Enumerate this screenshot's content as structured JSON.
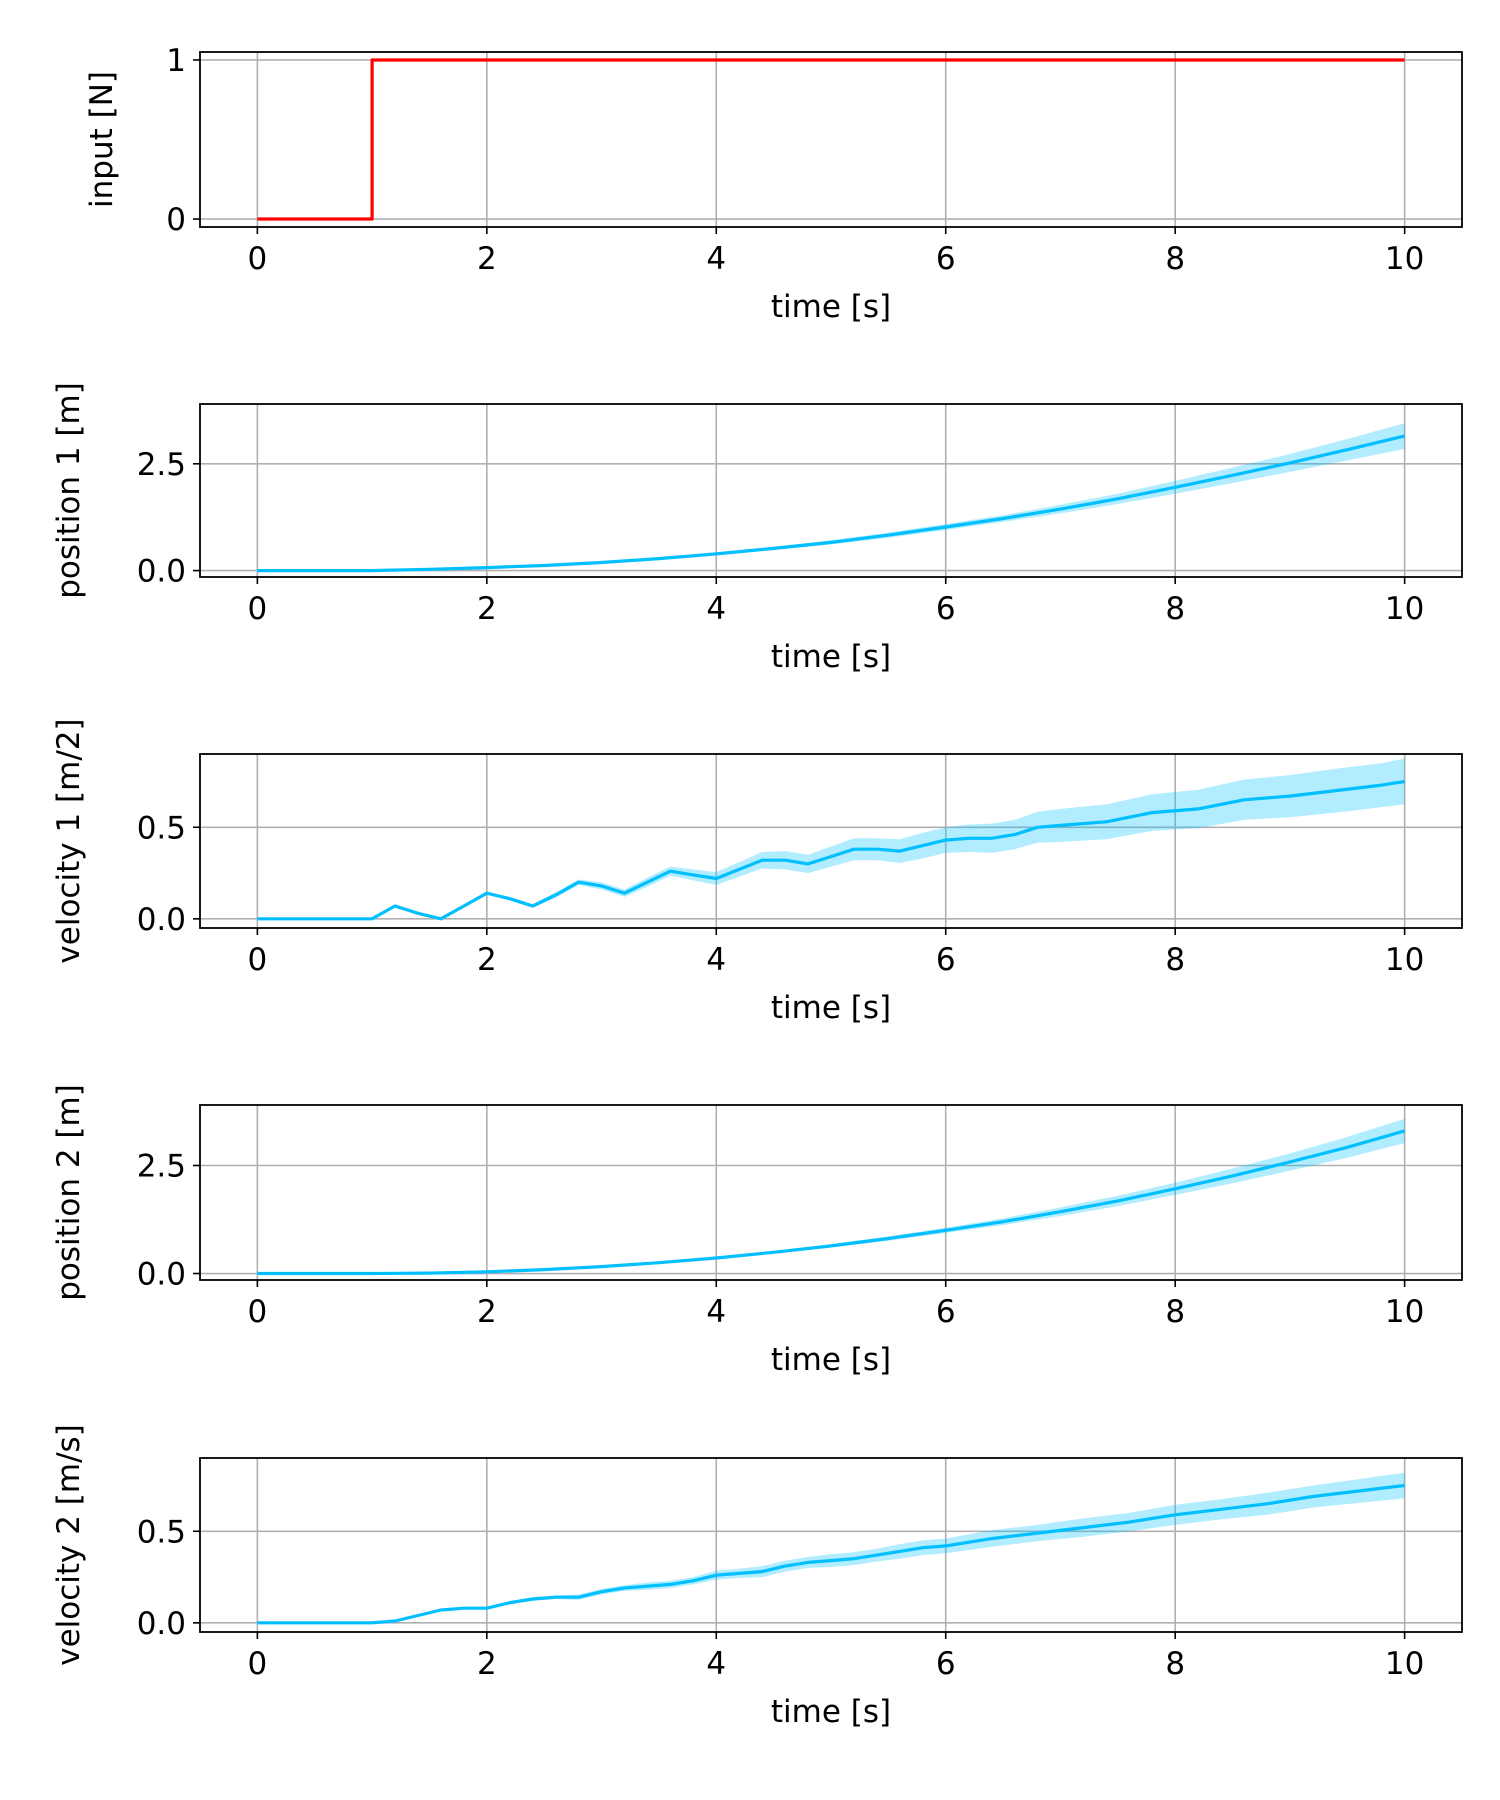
{
  "colors": {
    "input_line": "#ff0000",
    "state_line": "#00bfff",
    "state_band": "#00bfff",
    "grid": "#b0b0b0"
  },
  "chart_data": [
    {
      "type": "line",
      "xlabel": "time [s]",
      "ylabel": "input [N]",
      "xlim": [
        -0.5,
        10.5
      ],
      "ylim": [
        -0.05,
        1.05
      ],
      "xticks": [
        "0",
        "2",
        "4",
        "6",
        "8",
        "10"
      ],
      "yticks": [
        "0",
        "1"
      ],
      "grid": true,
      "series": [
        {
          "color": "#ff0000",
          "x": [
            0,
            1,
            1,
            10
          ],
          "y": [
            0,
            0,
            1,
            1
          ]
        }
      ]
    },
    {
      "type": "line",
      "xlabel": "time [s]",
      "ylabel": "position 1 [m]",
      "xlim": [
        -0.5,
        10.5
      ],
      "ylim": [
        -0.15,
        3.9
      ],
      "xticks": [
        "0",
        "2",
        "4",
        "6",
        "8",
        "10"
      ],
      "yticks": [
        "0.0",
        "2.5"
      ],
      "grid": true,
      "series": [
        {
          "color": "#00bfff",
          "x": [
            0,
            1,
            1.5,
            2,
            2.5,
            3,
            3.5,
            4,
            4.5,
            5,
            5.5,
            6,
            6.5,
            7,
            7.5,
            8,
            8.5,
            9,
            9.5,
            10
          ],
          "y": [
            0,
            0,
            0.03,
            0.07,
            0.12,
            0.19,
            0.28,
            0.39,
            0.52,
            0.66,
            0.83,
            1.02,
            1.22,
            1.44,
            1.68,
            1.95,
            2.23,
            2.52,
            2.83,
            3.15
          ],
          "band": [
            0,
            0,
            0,
            0.01,
            0.01,
            0.02,
            0.02,
            0.03,
            0.04,
            0.05,
            0.06,
            0.07,
            0.08,
            0.1,
            0.12,
            0.15,
            0.18,
            0.21,
            0.25,
            0.3
          ]
        }
      ]
    },
    {
      "type": "line",
      "xlabel": "time [s]",
      "ylabel": "velocity 1 [m/2]",
      "xlim": [
        -0.5,
        10.5
      ],
      "ylim": [
        -0.05,
        0.9
      ],
      "xticks": [
        "0",
        "2",
        "4",
        "6",
        "8",
        "10"
      ],
      "yticks": [
        "0.0",
        "0.5"
      ],
      "grid": true,
      "series": [
        {
          "color": "#00bfff",
          "x": [
            0,
            1,
            1.2,
            1.4,
            1.6,
            1.8,
            2,
            2.2,
            2.4,
            2.6,
            2.8,
            3,
            3.2,
            3.4,
            3.6,
            3.8,
            4,
            4.2,
            4.4,
            4.6,
            4.8,
            5,
            5.2,
            5.4,
            5.6,
            5.8,
            6,
            6.2,
            6.4,
            6.6,
            6.8,
            7,
            7.4,
            7.8,
            8.2,
            8.6,
            9,
            9.4,
            9.8,
            10
          ],
          "y": [
            0,
            0,
            0.07,
            0.03,
            0.0,
            0.07,
            0.14,
            0.11,
            0.07,
            0.13,
            0.2,
            0.18,
            0.14,
            0.2,
            0.26,
            0.24,
            0.22,
            0.27,
            0.32,
            0.32,
            0.3,
            0.34,
            0.38,
            0.38,
            0.37,
            0.4,
            0.43,
            0.44,
            0.44,
            0.46,
            0.5,
            0.51,
            0.53,
            0.58,
            0.6,
            0.65,
            0.67,
            0.7,
            0.73,
            0.75
          ],
          "band": [
            0,
            0,
            0,
            0,
            0,
            0,
            0.005,
            0.01,
            0.01,
            0.015,
            0.015,
            0.02,
            0.02,
            0.025,
            0.025,
            0.03,
            0.035,
            0.04,
            0.045,
            0.05,
            0.05,
            0.055,
            0.06,
            0.06,
            0.065,
            0.07,
            0.07,
            0.075,
            0.08,
            0.08,
            0.085,
            0.09,
            0.095,
            0.1,
            0.105,
            0.11,
            0.115,
            0.12,
            0.12,
            0.125
          ]
        }
      ]
    },
    {
      "type": "line",
      "xlabel": "time [s]",
      "ylabel": "position 2 [m]",
      "xlim": [
        -0.5,
        10.5
      ],
      "ylim": [
        -0.15,
        3.9
      ],
      "xticks": [
        "0",
        "2",
        "4",
        "6",
        "8",
        "10"
      ],
      "yticks": [
        "0.0",
        "2.5"
      ],
      "grid": true,
      "series": [
        {
          "color": "#00bfff",
          "x": [
            0,
            1,
            1.5,
            2,
            2.5,
            3,
            3.5,
            4,
            4.5,
            5,
            5.5,
            6,
            6.5,
            7,
            7.5,
            8,
            8.5,
            9,
            9.5,
            10
          ],
          "y": [
            0,
            0,
            0.01,
            0.04,
            0.09,
            0.16,
            0.25,
            0.36,
            0.49,
            0.64,
            0.81,
            1.0,
            1.2,
            1.43,
            1.68,
            1.96,
            2.26,
            2.58,
            2.92,
            3.3
          ],
          "band": [
            0,
            0,
            0,
            0.005,
            0.01,
            0.015,
            0.02,
            0.025,
            0.03,
            0.04,
            0.05,
            0.06,
            0.08,
            0.1,
            0.12,
            0.14,
            0.17,
            0.2,
            0.24,
            0.28
          ]
        }
      ]
    },
    {
      "type": "line",
      "xlabel": "time [s]",
      "ylabel": "velocity 2 [m/s]",
      "xlim": [
        -0.5,
        10.5
      ],
      "ylim": [
        -0.05,
        0.9
      ],
      "xticks": [
        "0",
        "2",
        "4",
        "6",
        "8",
        "10"
      ],
      "yticks": [
        "0.0",
        "0.5"
      ],
      "grid": true,
      "series": [
        {
          "color": "#00bfff",
          "x": [
            0,
            1,
            1.2,
            1.4,
            1.6,
            1.8,
            2,
            2.2,
            2.4,
            2.6,
            2.8,
            3,
            3.2,
            3.4,
            3.6,
            3.8,
            4,
            4.2,
            4.4,
            4.6,
            4.8,
            5,
            5.2,
            5.4,
            5.6,
            5.8,
            6,
            6.4,
            6.8,
            7.2,
            7.6,
            8,
            8.4,
            8.8,
            9.2,
            9.6,
            10
          ],
          "y": [
            0,
            0,
            0.01,
            0.04,
            0.07,
            0.08,
            0.08,
            0.11,
            0.13,
            0.14,
            0.14,
            0.17,
            0.19,
            0.2,
            0.21,
            0.23,
            0.26,
            0.27,
            0.28,
            0.31,
            0.33,
            0.34,
            0.35,
            0.37,
            0.39,
            0.41,
            0.42,
            0.46,
            0.49,
            0.52,
            0.55,
            0.59,
            0.62,
            0.65,
            0.69,
            0.72,
            0.75
          ],
          "band": [
            0,
            0,
            0,
            0,
            0,
            0.005,
            0.005,
            0.01,
            0.01,
            0.01,
            0.015,
            0.015,
            0.015,
            0.02,
            0.02,
            0.02,
            0.025,
            0.025,
            0.03,
            0.03,
            0.03,
            0.035,
            0.035,
            0.035,
            0.04,
            0.04,
            0.04,
            0.045,
            0.045,
            0.05,
            0.05,
            0.055,
            0.055,
            0.06,
            0.06,
            0.065,
            0.07
          ]
        }
      ]
    }
  ]
}
